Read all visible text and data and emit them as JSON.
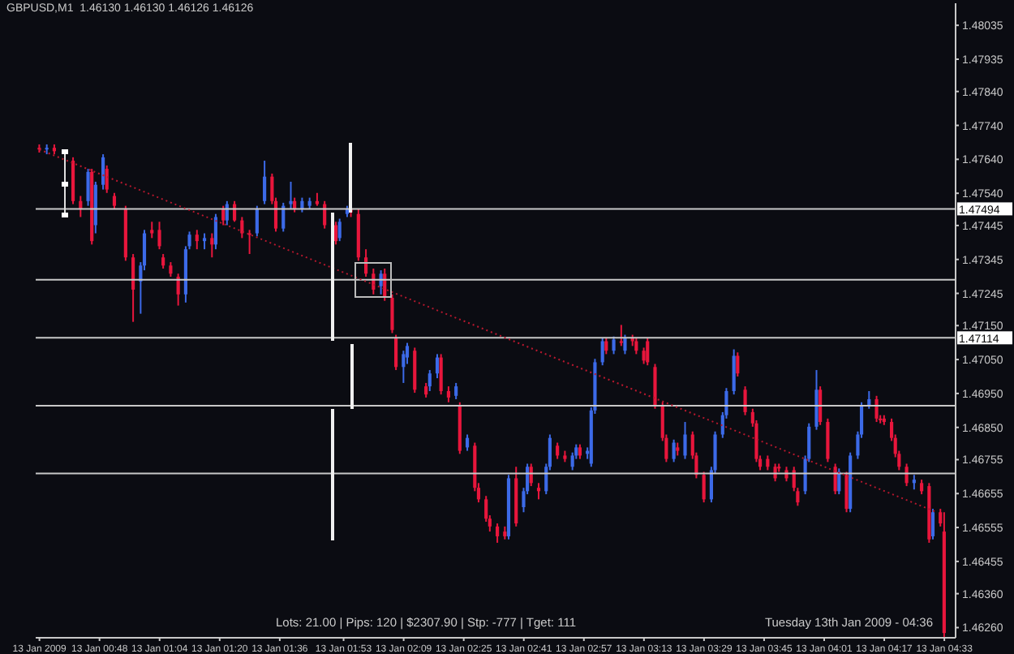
{
  "chart_data": {
    "type": "candlestick",
    "title": "GBPUSD,M1  1.46130 1.46130 1.46126 1.46126",
    "annotations": [
      "Lots: 21.00 | Pips: 120 | $2307.90 | Stp: -777 | Tget: 111",
      "Tuesday 13th Jan 2009 - 04:36"
    ],
    "x": [
      "2009-01-13T00:32",
      "2009-01-13T00:34",
      "2009-01-13T00:36",
      "2009-01-13T00:41",
      "2009-01-13T00:43",
      "2009-01-13T00:45",
      "2009-01-13T00:46",
      "2009-01-13T00:47",
      "2009-01-13T00:49",
      "2009-01-13T00:50",
      "2009-01-13T00:52",
      "2009-01-13T00:55",
      "2009-01-13T00:57",
      "2009-01-13T00:59",
      "2009-01-13T01:00",
      "2009-01-13T01:02",
      "2009-01-13T01:04",
      "2009-01-13T01:05",
      "2009-01-13T01:07",
      "2009-01-13T01:09",
      "2009-01-13T01:11",
      "2009-01-13T01:12",
      "2009-01-13T01:14",
      "2009-01-13T01:16",
      "2009-01-13T01:18",
      "2009-01-13T01:19",
      "2009-01-13T01:21",
      "2009-01-13T01:22",
      "2009-01-13T01:24",
      "2009-01-13T01:26",
      "2009-01-13T01:28",
      "2009-01-13T01:30",
      "2009-01-13T01:32",
      "2009-01-13T01:34",
      "2009-01-13T01:35",
      "2009-01-13T01:37",
      "2009-01-13T01:39",
      "2009-01-13T01:40",
      "2009-01-13T01:42",
      "2009-01-13T01:44",
      "2009-01-13T01:46",
      "2009-01-13T01:48",
      "2009-01-13T01:51",
      "2009-01-13T01:52",
      "2009-01-13T01:54",
      "2009-01-13T01:55",
      "2009-01-13T01:57",
      "2009-01-13T01:59",
      "2009-01-13T02:01",
      "2009-01-13T02:03",
      "2009-01-13T02:04",
      "2009-01-13T02:06",
      "2009-01-13T02:07",
      "2009-01-13T02:09",
      "2009-01-13T02:10",
      "2009-01-13T02:12",
      "2009-01-13T02:15",
      "2009-01-13T02:16",
      "2009-01-13T02:18",
      "2009-01-13T02:19",
      "2009-01-13T02:21",
      "2009-01-13T02:23",
      "2009-01-13T02:24",
      "2009-01-13T02:26",
      "2009-01-13T02:28",
      "2009-01-13T02:29",
      "2009-01-13T02:31",
      "2009-01-13T02:32",
      "2009-01-13T02:34",
      "2009-01-13T02:36",
      "2009-01-13T02:37",
      "2009-01-13T02:39",
      "2009-01-13T02:41",
      "2009-01-13T02:42",
      "2009-01-13T02:43",
      "2009-01-13T02:45",
      "2009-01-13T02:47",
      "2009-01-13T02:48",
      "2009-01-13T02:50",
      "2009-01-13T02:52",
      "2009-01-13T02:54",
      "2009-01-13T02:55",
      "2009-01-13T02:56",
      "2009-01-13T02:58",
      "2009-01-13T02:59",
      "2009-01-13T03:00",
      "2009-01-13T03:02",
      "2009-01-13T03:03",
      "2009-01-13T03:05",
      "2009-01-13T03:07",
      "2009-01-13T03:08",
      "2009-01-13T03:10",
      "2009-01-13T03:11",
      "2009-01-13T03:13",
      "2009-01-13T03:14",
      "2009-01-13T03:16",
      "2009-01-13T03:18",
      "2009-01-13T03:19",
      "2009-01-13T03:21",
      "2009-01-13T03:22",
      "2009-01-13T03:24",
      "2009-01-13T03:26",
      "2009-01-13T03:27",
      "2009-01-13T03:29",
      "2009-01-13T03:31",
      "2009-01-13T03:32",
      "2009-01-13T03:34",
      "2009-01-13T03:35",
      "2009-01-13T03:37",
      "2009-01-13T03:38",
      "2009-01-13T03:40",
      "2009-01-13T03:42",
      "2009-01-13T03:43",
      "2009-01-13T03:44",
      "2009-01-13T03:46",
      "2009-01-13T03:48",
      "2009-01-13T03:49",
      "2009-01-13T03:51",
      "2009-01-13T03:53",
      "2009-01-13T03:54",
      "2009-01-13T03:56",
      "2009-01-13T03:57",
      "2009-01-13T03:59",
      "2009-01-13T04:00",
      "2009-01-13T04:02",
      "2009-01-13T04:04",
      "2009-01-13T04:05",
      "2009-01-13T04:07",
      "2009-01-13T04:08",
      "2009-01-13T04:10",
      "2009-01-13T04:11",
      "2009-01-13T04:13",
      "2009-01-13T04:15",
      "2009-01-13T04:16",
      "2009-01-13T04:17",
      "2009-01-13T04:19",
      "2009-01-13T04:20",
      "2009-01-13T04:21",
      "2009-01-13T04:23",
      "2009-01-13T04:25",
      "2009-01-13T04:27",
      "2009-01-13T04:29",
      "2009-01-13T04:30",
      "2009-01-13T04:32",
      "2009-01-13T04:33"
    ],
    "ohlc": [
      [
        1.47674,
        1.47684,
        1.4766,
        1.47669
      ],
      [
        1.47669,
        1.47684,
        1.47655,
        1.47674
      ],
      [
        1.47674,
        1.47684,
        1.47655,
        1.47664
      ],
      [
        1.47636,
        1.47646,
        1.47508,
        1.47517
      ],
      [
        1.47517,
        1.47532,
        1.4747,
        1.47494
      ],
      [
        1.47517,
        1.47612,
        1.47503,
        1.47603
      ],
      [
        1.47603,
        1.47612,
        1.47389,
        1.47399
      ],
      [
        1.47446,
        1.47574,
        1.47422,
        1.47565
      ],
      [
        1.47565,
        1.47655,
        1.47551,
        1.47646
      ],
      [
        1.47612,
        1.47622,
        1.47541,
        1.47551
      ],
      [
        1.47532,
        1.47541,
        1.47494,
        1.47503
      ],
      [
        1.47494,
        1.47503,
        1.47341,
        1.47351
      ],
      [
        1.47351,
        1.47361,
        1.47161,
        1.47256
      ],
      [
        1.4728,
        1.47337,
        1.47185,
        1.47327
      ],
      [
        1.47327,
        1.47432,
        1.47313,
        1.47422
      ],
      [
        1.47432,
        1.47456,
        1.47408,
        1.47422
      ],
      [
        1.47432,
        1.47456,
        1.47375,
        1.47384
      ],
      [
        1.47351,
        1.47361,
        1.47318,
        1.47327
      ],
      [
        1.47327,
        1.47337,
        1.47294,
        1.47303
      ],
      [
        1.47294,
        1.47303,
        1.47209,
        1.47242
      ],
      [
        1.47242,
        1.47384,
        1.47218,
        1.47375
      ],
      [
        1.47384,
        1.47427,
        1.47375,
        1.47418
      ],
      [
        1.47418,
        1.47432,
        1.47375,
        1.47399
      ],
      [
        1.47399,
        1.47422,
        1.47375,
        1.47408
      ],
      [
        1.47408,
        1.47422,
        1.47351,
        1.47389
      ],
      [
        1.47389,
        1.47479,
        1.47375,
        1.4747
      ],
      [
        1.47494,
        1.47503,
        1.47446,
        1.4746
      ],
      [
        1.4746,
        1.47517,
        1.47446,
        1.47508
      ],
      [
        1.47508,
        1.47517,
        1.47456,
        1.4746
      ],
      [
        1.4746,
        1.4747,
        1.47408,
        1.47422
      ],
      [
        1.47422,
        1.47432,
        1.47361,
        1.47418
      ],
      [
        1.47422,
        1.47503,
        1.47413,
        1.47494
      ],
      [
        1.47517,
        1.47636,
        1.47508,
        1.47589
      ],
      [
        1.47589,
        1.47598,
        1.47508,
        1.47517
      ],
      [
        1.47517,
        1.47527,
        1.47427,
        1.47436
      ],
      [
        1.47436,
        1.47512,
        1.47427,
        1.47503
      ],
      [
        1.47508,
        1.47574,
        1.47494,
        1.47517
      ],
      [
        1.47517,
        1.47527,
        1.47484,
        1.47494
      ],
      [
        1.47494,
        1.47527,
        1.47484,
        1.47517
      ],
      [
        1.47503,
        1.47527,
        1.47494,
        1.47517
      ],
      [
        1.47517,
        1.47541,
        1.47503,
        1.47508
      ],
      [
        1.47508,
        1.47517,
        1.47436,
        1.47446
      ],
      [
        1.47446,
        1.47456,
        1.47389,
        1.47399
      ],
      [
        1.47408,
        1.47465,
        1.47399,
        1.47456
      ],
      [
        1.47479,
        1.47503,
        1.4747,
        1.47494
      ],
      [
        1.47494,
        1.47503,
        1.4747,
        1.47484
      ],
      [
        1.47479,
        1.47494,
        1.47341,
        1.47351
      ],
      [
        1.47351,
        1.47375,
        1.47294,
        1.47303
      ],
      [
        1.47303,
        1.47318,
        1.47242,
        1.47256
      ],
      [
        1.47266,
        1.47313,
        1.47242,
        1.47303
      ],
      [
        1.47303,
        1.47318,
        1.47223,
        1.47232
      ],
      [
        1.47232,
        1.47242,
        1.47128,
        1.47137
      ],
      [
        1.47114,
        1.47123,
        1.47019,
        1.47028
      ],
      [
        1.47028,
        1.47076,
        1.46981,
        1.47066
      ],
      [
        1.47056,
        1.47099,
        1.47037,
        1.4709
      ],
      [
        1.47076,
        1.47085,
        1.46952,
        1.46961
      ],
      [
        1.46971,
        1.46981,
        1.46938,
        1.46947
      ],
      [
        1.46971,
        1.47019,
        1.46957,
        1.47009
      ],
      [
        1.47009,
        1.47066,
        1.46995,
        1.47056
      ],
      [
        1.47056,
        1.47066,
        1.46947,
        1.46957
      ],
      [
        1.46957,
        1.46971,
        1.46924,
        1.46938
      ],
      [
        1.46943,
        1.46981,
        1.46933,
        1.46971
      ],
      [
        1.46914,
        1.46924,
        1.46772,
        1.46781
      ],
      [
        1.46791,
        1.46829,
        1.46781,
        1.46819
      ],
      [
        1.46796,
        1.46805,
        1.46662,
        1.46672
      ],
      [
        1.46672,
        1.46686,
        1.46629,
        1.46638
      ],
      [
        1.46638,
        1.46648,
        1.46572,
        1.46581
      ],
      [
        1.46581,
        1.46591,
        1.46543,
        1.46558
      ],
      [
        1.46558,
        1.46567,
        1.4651,
        1.46529
      ],
      [
        1.46543,
        1.46558,
        1.4652,
        1.46529
      ],
      [
        1.46529,
        1.4671,
        1.4652,
        1.467
      ],
      [
        1.467,
        1.46734,
        1.46558,
        1.46567
      ],
      [
        1.46615,
        1.46672,
        1.466,
        1.46662
      ],
      [
        1.46662,
        1.46743,
        1.46653,
        1.46734
      ],
      [
        1.46734,
        1.46743,
        1.46677,
        1.46686
      ],
      [
        1.46672,
        1.46686,
        1.46638,
        1.46662
      ],
      [
        1.46662,
        1.46743,
        1.46653,
        1.46734
      ],
      [
        1.46734,
        1.46829,
        1.46724,
        1.46819
      ],
      [
        1.46796,
        1.46805,
        1.46757,
        1.46767
      ],
      [
        1.46767,
        1.46781,
        1.46748,
        1.46757
      ],
      [
        1.46734,
        1.46776,
        1.46724,
        1.46767
      ],
      [
        1.46767,
        1.468,
        1.46757,
        1.46791
      ],
      [
        1.46791,
        1.468,
        1.46757,
        1.46767
      ],
      [
        1.46772,
        1.46791,
        1.46757,
        1.46781
      ],
      [
        1.46743,
        1.46909,
        1.46734,
        1.469
      ],
      [
        1.469,
        1.47052,
        1.4689,
        1.47042
      ],
      [
        1.47042,
        1.47114,
        1.47033,
        1.47104
      ],
      [
        1.47104,
        1.47114,
        1.47066,
        1.47076
      ],
      [
        1.47076,
        1.47118,
        1.47066,
        1.47109
      ],
      [
        1.47104,
        1.47152,
        1.4709,
        1.47099
      ],
      [
        1.47076,
        1.47123,
        1.47066,
        1.47114
      ],
      [
        1.47114,
        1.47123,
        1.4709,
        1.47104
      ],
      [
        1.47104,
        1.47114,
        1.47066,
        1.47076
      ],
      [
        1.47076,
        1.47085,
        1.47037,
        1.47047
      ],
      [
        1.47104,
        1.47114,
        1.47033,
        1.47042
      ],
      [
        1.47028,
        1.47037,
        1.46905,
        1.46914
      ],
      [
        1.46914,
        1.46924,
        1.4681,
        1.46819
      ],
      [
        1.46819,
        1.46829,
        1.46748,
        1.46757
      ],
      [
        1.46757,
        1.46814,
        1.46748,
        1.46805
      ],
      [
        1.46791,
        1.46805,
        1.46767,
        1.46781
      ],
      [
        1.46767,
        1.46866,
        1.46757,
        1.46829
      ],
      [
        1.46829,
        1.46838,
        1.46757,
        1.46767
      ],
      [
        1.46767,
        1.46776,
        1.467,
        1.4671
      ],
      [
        1.4671,
        1.46719,
        1.46629,
        1.46638
      ],
      [
        1.46638,
        1.46734,
        1.46629,
        1.46724
      ],
      [
        1.46724,
        1.46838,
        1.46714,
        1.46829
      ],
      [
        1.46829,
        1.46895,
        1.46819,
        1.46886
      ],
      [
        1.46886,
        1.46966,
        1.46876,
        1.46957
      ],
      [
        1.46957,
        1.4708,
        1.46947,
        1.47061
      ],
      [
        1.47061,
        1.47071,
        1.47,
        1.47009
      ],
      [
        1.46961,
        1.46971,
        1.46886,
        1.46895
      ],
      [
        1.46895,
        1.46905,
        1.46852,
        1.46862
      ],
      [
        1.46862,
        1.46871,
        1.46748,
        1.46757
      ],
      [
        1.46757,
        1.46767,
        1.46724,
        1.46734
      ],
      [
        1.46757,
        1.46767,
        1.46724,
        1.46734
      ],
      [
        1.46734,
        1.46743,
        1.46691,
        1.467
      ],
      [
        1.46734,
        1.46743,
        1.46719,
        1.46729
      ],
      [
        1.46724,
        1.46734,
        1.46691,
        1.467
      ],
      [
        1.46724,
        1.46734,
        1.46662,
        1.46672
      ],
      [
        1.46662,
        1.46672,
        1.46619,
        1.46629
      ],
      [
        1.46662,
        1.46767,
        1.46653,
        1.46757
      ],
      [
        1.46757,
        1.46862,
        1.46748,
        1.46852
      ],
      [
        1.46852,
        1.47019,
        1.46843,
        1.46961
      ],
      [
        1.46961,
        1.46971,
        1.46857,
        1.46866
      ],
      [
        1.46866,
        1.46876,
        1.46748,
        1.46757
      ],
      [
        1.46734,
        1.46743,
        1.46653,
        1.46662
      ],
      [
        1.46662,
        1.46729,
        1.46653,
        1.46719
      ],
      [
        1.4671,
        1.46719,
        1.466,
        1.4661
      ],
      [
        1.4661,
        1.46776,
        1.466,
        1.46767
      ],
      [
        1.46767,
        1.46838,
        1.46757,
        1.46829
      ],
      [
        1.46829,
        1.46924,
        1.46819,
        1.46914
      ],
      [
        1.46914,
        1.46957,
        1.46905,
        1.46933
      ],
      [
        1.46933,
        1.46943,
        1.46866,
        1.46876
      ],
      [
        1.46876,
        1.46886,
        1.46862,
        1.46871
      ],
      [
        1.46876,
        1.46886,
        1.46857,
        1.46866
      ],
      [
        1.46866,
        1.46876,
        1.4681,
        1.46819
      ],
      [
        1.46819,
        1.46829,
        1.46762,
        1.46772
      ],
      [
        1.46772,
        1.46781,
        1.46724,
        1.46734
      ],
      [
        1.46734,
        1.46743,
        1.46677,
        1.46686
      ],
      [
        1.46686,
        1.4671,
        1.46667,
        1.46696
      ],
      [
        1.46686,
        1.46696,
        1.46653,
        1.46662
      ],
      [
        1.46677,
        1.46686,
        1.4651,
        1.4652
      ],
      [
        1.46529,
        1.4661,
        1.4652,
        1.466
      ],
      [
        1.466,
        1.4661,
        1.46558,
        1.46567
      ],
      [
        1.46543,
        1.466,
        1.4623,
        1.46244
      ]
    ],
    "colors": [
      "#e8163c",
      "#3c6ae8",
      "#e8163c",
      "#e8163c",
      "#e8163c",
      "#3c6ae8",
      "#e8163c",
      "#3c6ae8",
      "#3c6ae8",
      "#e8163c",
      "#e8163c",
      "#e8163c",
      "#e8163c",
      "#3c6ae8",
      "#3c6ae8",
      "#e8163c",
      "#e8163c",
      "#e8163c",
      "#e8163c",
      "#e8163c",
      "#3c6ae8",
      "#3c6ae8",
      "#e8163c",
      "#3c6ae8",
      "#e8163c",
      "#3c6ae8",
      "#e8163c",
      "#3c6ae8",
      "#e8163c",
      "#e8163c",
      "#e8163c",
      "#3c6ae8",
      "#3c6ae8",
      "#e8163c",
      "#e8163c",
      "#3c6ae8",
      "#3c6ae8",
      "#e8163c",
      "#3c6ae8",
      "#3c6ae8",
      "#e8163c",
      "#e8163c",
      "#e8163c",
      "#3c6ae8",
      "#3c6ae8",
      "#e8163c",
      "#e8163c",
      "#e8163c",
      "#e8163c",
      "#3c6ae8",
      "#e8163c",
      "#e8163c",
      "#e8163c",
      "#3c6ae8",
      "#3c6ae8",
      "#e8163c",
      "#e8163c",
      "#3c6ae8",
      "#3c6ae8",
      "#e8163c",
      "#e8163c",
      "#3c6ae8",
      "#e8163c",
      "#3c6ae8",
      "#e8163c",
      "#e8163c",
      "#e8163c",
      "#e8163c",
      "#e8163c",
      "#e8163c",
      "#3c6ae8",
      "#e8163c",
      "#3c6ae8",
      "#3c6ae8",
      "#e8163c",
      "#e8163c",
      "#3c6ae8",
      "#3c6ae8",
      "#e8163c",
      "#e8163c",
      "#3c6ae8",
      "#3c6ae8",
      "#e8163c",
      "#3c6ae8",
      "#3c6ae8",
      "#3c6ae8",
      "#3c6ae8",
      "#e8163c",
      "#3c6ae8",
      "#e8163c",
      "#3c6ae8",
      "#e8163c",
      "#e8163c",
      "#e8163c",
      "#e8163c",
      "#e8163c",
      "#e8163c",
      "#e8163c",
      "#3c6ae8",
      "#e8163c",
      "#3c6ae8",
      "#e8163c",
      "#e8163c",
      "#e8163c",
      "#3c6ae8",
      "#3c6ae8",
      "#3c6ae8",
      "#3c6ae8",
      "#3c6ae8",
      "#e8163c",
      "#e8163c",
      "#e8163c",
      "#e8163c",
      "#e8163c",
      "#e8163c",
      "#e8163c",
      "#e8163c",
      "#e8163c",
      "#e8163c",
      "#e8163c",
      "#3c6ae8",
      "#3c6ae8",
      "#3c6ae8",
      "#e8163c",
      "#e8163c",
      "#e8163c",
      "#3c6ae8",
      "#e8163c",
      "#3c6ae8",
      "#3c6ae8",
      "#3c6ae8",
      "#3c6ae8",
      "#e8163c",
      "#e8163c",
      "#e8163c",
      "#e8163c",
      "#e8163c",
      "#e8163c",
      "#e8163c",
      "#3c6ae8",
      "#e8163c",
      "#e8163c",
      "#3c6ae8",
      "#e8163c",
      "#e8163c"
    ],
    "series": [
      {
        "type": "line",
        "color": "#b8182e",
        "line_style": "dotted",
        "marker": "none",
        "x": [
          "2009-01-13T00:32",
          "2009-01-13T04:31"
        ],
        "values": [
          1.47669,
          1.466
        ]
      }
    ],
    "xlim": [
      "2009-01-13T00:31",
      "2009-01-13T04:36"
    ],
    "xticks": [
      {
        "value": "2009-01-13T00:32",
        "label": "13 Jan 2009"
      },
      {
        "value": "2009-01-13T00:48",
        "label": "13 Jan 00:48"
      },
      {
        "value": "2009-01-13T01:04",
        "label": "13 Jan 01:04"
      },
      {
        "value": "2009-01-13T01:20",
        "label": "13 Jan 01:20"
      },
      {
        "value": "2009-01-13T01:36",
        "label": "13 Jan 01:36"
      },
      {
        "value": "2009-01-13T01:53",
        "label": "13 Jan 01:53"
      },
      {
        "value": "2009-01-13T02:09",
        "label": "13 Jan 02:09"
      },
      {
        "value": "2009-01-13T02:25",
        "label": "13 Jan 02:25"
      },
      {
        "value": "2009-01-13T02:41",
        "label": "13 Jan 02:41"
      },
      {
        "value": "2009-01-13T02:57",
        "label": "13 Jan 02:57"
      },
      {
        "value": "2009-01-13T03:13",
        "label": "13 Jan 03:13"
      },
      {
        "value": "2009-01-13T03:29",
        "label": "13 Jan 03:29"
      },
      {
        "value": "2009-01-13T03:45",
        "label": "13 Jan 03:45"
      },
      {
        "value": "2009-01-13T04:01",
        "label": "13 Jan 04:01"
      },
      {
        "value": "2009-01-13T04:17",
        "label": "13 Jan 04:17"
      },
      {
        "value": "2009-01-13T04:33",
        "label": "13 Jan 04:33"
      }
    ],
    "ylim": [
      1.4623,
      1.481
    ],
    "yticks": [
      1.48035,
      1.47935,
      {
        "value": 1.4784,
        "label": "1.47840"
      },
      {
        "value": 1.4774,
        "label": "1.47740"
      },
      {
        "value": 1.4764,
        "label": "1.47640"
      },
      {
        "value": 1.4754,
        "label": "1.47540"
      },
      1.47445,
      1.47345,
      1.47245,
      {
        "value": 1.4715,
        "label": "1.47150"
      },
      {
        "value": 1.4705,
        "label": "1.47050"
      },
      {
        "value": 1.4695,
        "label": "1.46950"
      },
      {
        "value": 1.4685,
        "label": "1.46850"
      },
      1.46755,
      1.46655,
      1.46555,
      1.46455,
      {
        "value": 1.4636,
        "label": "1.46360"
      },
      {
        "value": 1.4626,
        "label": "1.46260"
      }
    ],
    "ref_lines": [
      {
        "axis": "y",
        "value": 1.47494,
        "label": "1.47494",
        "color": "#c8c8c8"
      },
      {
        "axis": "y",
        "value": 1.47285,
        "color": "#c8c8c8"
      },
      {
        "axis": "y",
        "value": 1.47114,
        "label": "1.47114",
        "color": "#c8c8c8"
      },
      {
        "axis": "y",
        "value": 1.46914,
        "color": "#c8c8c8"
      },
      {
        "axis": "y",
        "value": 1.46714,
        "color": "#c8c8c8"
      }
    ]
  }
}
